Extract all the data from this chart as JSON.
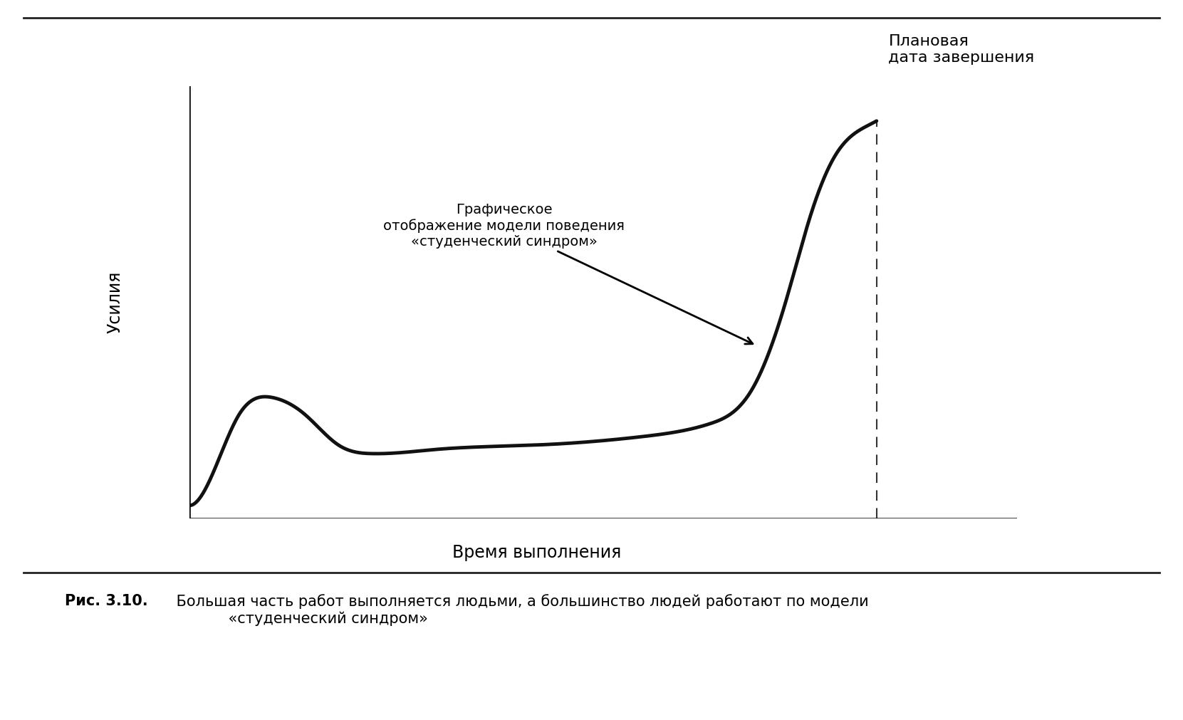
{
  "background_color": "#ffffff",
  "border_color": "#222222",
  "curve_color": "#111111",
  "curve_linewidth": 3.5,
  "dashed_line_color": "#333333",
  "ylabel": "Усилия",
  "xlabel": "Время выполнения",
  "annotation_text": "Графическое\nотображение модели поведения\n«студенческий синдром»",
  "deadline_label": "Плановая\nдата завершения",
  "caption_bold": "Рис. 3.10.",
  "caption_normal": " Большая часть работ выполняется людьми, а большинство людей работают по модели\n            «студенческий синдром»",
  "xlim": [
    0,
    1.0
  ],
  "ylim": [
    0,
    1.0
  ],
  "deadline_x": 0.83,
  "font_family": "DejaVu Sans"
}
